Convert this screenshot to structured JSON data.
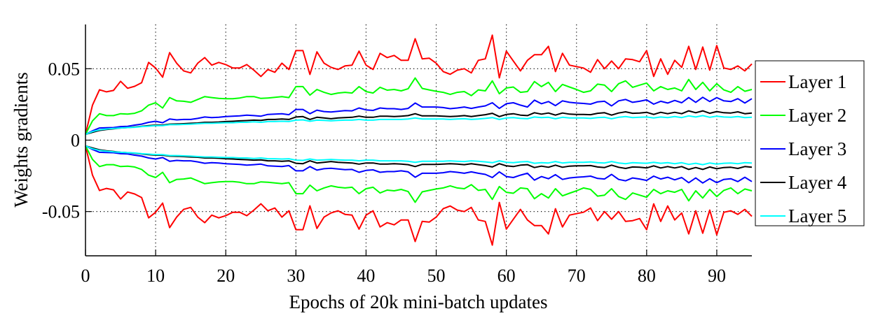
{
  "chart_data": {
    "type": "line",
    "title": "",
    "xlabel": "Epochs of 20k mini-batch updates",
    "ylabel": "Weights gradients",
    "xlim": [
      0,
      95
    ],
    "ylim": [
      -0.081,
      0.081
    ],
    "xticks": [
      0,
      10,
      20,
      30,
      40,
      50,
      60,
      70,
      80,
      90
    ],
    "xtick_labels": [
      "0",
      "10",
      "20",
      "30",
      "40",
      "50",
      "60",
      "70",
      "80",
      "90"
    ],
    "yticks": [
      -0.05,
      0,
      0.05
    ],
    "ytick_labels": [
      "-0.05",
      "0",
      "0.05"
    ],
    "grid": "dotted",
    "legend_position": "right-outside",
    "legend": [
      {
        "name": "Layer 1",
        "color": "#ff0000"
      },
      {
        "name": "Layer 2",
        "color": "#00ff00"
      },
      {
        "name": "Layer 3",
        "color": "#0000ff"
      },
      {
        "name": "Layer 4",
        "color": "#000000"
      },
      {
        "name": "Layer 5",
        "color": "#00ffff"
      }
    ],
    "x_start": 0,
    "x_step": 1,
    "series": [
      {
        "name": "Layer 1",
        "color": "#ff0000",
        "band": "upper",
        "values": [
          0.004,
          0.0245,
          0.0353,
          0.0338,
          0.0348,
          0.0412,
          0.0363,
          0.0377,
          0.0402,
          0.0544,
          0.0505,
          0.0441,
          0.0613,
          0.0539,
          0.0485,
          0.0471,
          0.0539,
          0.0578,
          0.0525,
          0.0544,
          0.0529,
          0.0505,
          0.0505,
          0.0529,
          0.049,
          0.0446,
          0.0495,
          0.0475,
          0.0539,
          0.0495,
          0.0627,
          0.0627,
          0.046,
          0.0618,
          0.0539,
          0.051,
          0.0495,
          0.052,
          0.0525,
          0.0623,
          0.0525,
          0.0495,
          0.0608,
          0.0578,
          0.0593,
          0.0559,
          0.0559,
          0.071,
          0.0569,
          0.0574,
          0.0539,
          0.048,
          0.0461,
          0.049,
          0.05,
          0.0471,
          0.0559,
          0.0569,
          0.0735,
          0.0436,
          0.0623,
          0.0554,
          0.0485,
          0.0559,
          0.0598,
          0.0598,
          0.0657,
          0.048,
          0.0608,
          0.0525,
          0.0515,
          0.0505,
          0.0475,
          0.0564,
          0.05,
          0.0554,
          0.05,
          0.0569,
          0.0564,
          0.0549,
          0.0627,
          0.0446,
          0.0569,
          0.0461,
          0.0559,
          0.051,
          0.0657,
          0.0495,
          0.0652,
          0.049,
          0.0662,
          0.0505,
          0.0495,
          0.052,
          0.0485,
          0.0534
        ]
      },
      {
        "name": "Layer 2",
        "color": "#00ff00",
        "band": "upper",
        "values": [
          0.004,
          0.0135,
          0.0185,
          0.0172,
          0.0172,
          0.0185,
          0.0182,
          0.0188,
          0.0205,
          0.0245,
          0.0262,
          0.0225,
          0.0298,
          0.0275,
          0.0272,
          0.0265,
          0.0285,
          0.0305,
          0.0298,
          0.0292,
          0.029,
          0.029,
          0.0295,
          0.0305,
          0.0305,
          0.0292,
          0.0295,
          0.03,
          0.0305,
          0.0298,
          0.0375,
          0.0375,
          0.0315,
          0.0355,
          0.0335,
          0.032,
          0.033,
          0.0335,
          0.033,
          0.0375,
          0.034,
          0.033,
          0.037,
          0.035,
          0.0355,
          0.0345,
          0.036,
          0.0435,
          0.0362,
          0.0352,
          0.0342,
          0.0335,
          0.032,
          0.0335,
          0.034,
          0.0312,
          0.0352,
          0.0345,
          0.0415,
          0.0325,
          0.0365,
          0.0372,
          0.0335,
          0.034,
          0.041,
          0.0375,
          0.0405,
          0.034,
          0.039,
          0.0372,
          0.0355,
          0.0335,
          0.0345,
          0.0392,
          0.0385,
          0.034,
          0.0395,
          0.0415,
          0.037,
          0.0385,
          0.04,
          0.0345,
          0.0375,
          0.0355,
          0.0365,
          0.0345,
          0.0425,
          0.0355,
          0.0405,
          0.0345,
          0.0395,
          0.0352,
          0.0335,
          0.0375,
          0.0342,
          0.0355
        ]
      },
      {
        "name": "Layer 3",
        "color": "#0000ff",
        "band": "upper",
        "values": [
          0.004,
          0.0065,
          0.0085,
          0.0087,
          0.0088,
          0.0095,
          0.0097,
          0.0105,
          0.0112,
          0.0125,
          0.0132,
          0.0122,
          0.0148,
          0.0142,
          0.0145,
          0.0145,
          0.0152,
          0.0162,
          0.0158,
          0.016,
          0.0165,
          0.0168,
          0.017,
          0.0175,
          0.0172,
          0.0168,
          0.018,
          0.0182,
          0.0185,
          0.0178,
          0.0215,
          0.0215,
          0.0185,
          0.021,
          0.02,
          0.0197,
          0.0202,
          0.0207,
          0.0205,
          0.0225,
          0.0212,
          0.0208,
          0.0225,
          0.022,
          0.022,
          0.0215,
          0.0222,
          0.026,
          0.0232,
          0.0232,
          0.0232,
          0.0228,
          0.022,
          0.0225,
          0.0232,
          0.0222,
          0.0232,
          0.024,
          0.0262,
          0.0222,
          0.0255,
          0.0262,
          0.0245,
          0.0232,
          0.028,
          0.0255,
          0.027,
          0.0242,
          0.0275,
          0.0265,
          0.026,
          0.0257,
          0.0252,
          0.0268,
          0.0272,
          0.024,
          0.0275,
          0.0285,
          0.0265,
          0.0272,
          0.0282,
          0.0252,
          0.0272,
          0.026,
          0.0278,
          0.0262,
          0.0298,
          0.0265,
          0.03,
          0.027,
          0.0298,
          0.0275,
          0.027,
          0.029,
          0.026,
          0.029
        ]
      },
      {
        "name": "Layer 4",
        "color": "#000000",
        "band": "upper",
        "values": [
          0.004,
          0.0055,
          0.0068,
          0.0075,
          0.008,
          0.0085,
          0.0088,
          0.0092,
          0.0097,
          0.0102,
          0.0105,
          0.0105,
          0.0112,
          0.0113,
          0.0115,
          0.0118,
          0.012,
          0.0125,
          0.0125,
          0.0127,
          0.013,
          0.0132,
          0.0135,
          0.0137,
          0.014,
          0.0138,
          0.0145,
          0.0145,
          0.0148,
          0.0145,
          0.0162,
          0.0165,
          0.0145,
          0.016,
          0.0155,
          0.015,
          0.0155,
          0.0158,
          0.016,
          0.0168,
          0.016,
          0.016,
          0.0168,
          0.0168,
          0.0165,
          0.0168,
          0.0172,
          0.0185,
          0.017,
          0.017,
          0.017,
          0.0168,
          0.0165,
          0.0168,
          0.0172,
          0.0165,
          0.0172,
          0.0178,
          0.0188,
          0.0165,
          0.018,
          0.0185,
          0.0175,
          0.0172,
          0.0192,
          0.0182,
          0.019,
          0.0175,
          0.019,
          0.0182,
          0.018,
          0.018,
          0.0178,
          0.0188,
          0.0192,
          0.0175,
          0.019,
          0.0198,
          0.0188,
          0.019,
          0.0195,
          0.018,
          0.0195,
          0.0185,
          0.0195,
          0.0185,
          0.0205,
          0.0192,
          0.0205,
          0.0188,
          0.02,
          0.0192,
          0.019,
          0.0198,
          0.0185,
          0.019
        ]
      },
      {
        "name": "Layer 5",
        "color": "#00ffff",
        "band": "upper",
        "values": [
          0.004,
          0.006,
          0.0072,
          0.0078,
          0.0082,
          0.0085,
          0.0088,
          0.009,
          0.0095,
          0.0098,
          0.0102,
          0.0102,
          0.0108,
          0.0108,
          0.011,
          0.0112,
          0.0115,
          0.0118,
          0.0118,
          0.012,
          0.0122,
          0.0122,
          0.0125,
          0.0125,
          0.0128,
          0.0125,
          0.013,
          0.013,
          0.0132,
          0.013,
          0.014,
          0.0142,
          0.0132,
          0.014,
          0.0138,
          0.0135,
          0.0138,
          0.014,
          0.014,
          0.0145,
          0.014,
          0.014,
          0.0145,
          0.0145,
          0.0145,
          0.0145,
          0.0148,
          0.0155,
          0.0148,
          0.0148,
          0.0148,
          0.0148,
          0.0145,
          0.0148,
          0.015,
          0.0145,
          0.0148,
          0.0152,
          0.0158,
          0.0145,
          0.0155,
          0.0158,
          0.0152,
          0.015,
          0.0162,
          0.0158,
          0.016,
          0.015,
          0.016,
          0.0155,
          0.0155,
          0.0155,
          0.0152,
          0.0158,
          0.016,
          0.015,
          0.016,
          0.0165,
          0.0158,
          0.016,
          0.0162,
          0.0155,
          0.0162,
          0.0158,
          0.0165,
          0.0158,
          0.017,
          0.0162,
          0.0172,
          0.016,
          0.0168,
          0.0162,
          0.016,
          0.0165,
          0.0158,
          0.016
        ]
      },
      {
        "name": "Layer 1",
        "color": "#ff0000",
        "band": "lower",
        "values": [
          -0.004,
          -0.0245,
          -0.0353,
          -0.0338,
          -0.0348,
          -0.0412,
          -0.0363,
          -0.0377,
          -0.0402,
          -0.0544,
          -0.0505,
          -0.0441,
          -0.0613,
          -0.0539,
          -0.0485,
          -0.0471,
          -0.0539,
          -0.0578,
          -0.0525,
          -0.0544,
          -0.0529,
          -0.0505,
          -0.0505,
          -0.0529,
          -0.049,
          -0.0446,
          -0.0495,
          -0.0475,
          -0.0539,
          -0.0495,
          -0.0627,
          -0.0627,
          -0.046,
          -0.0618,
          -0.0539,
          -0.051,
          -0.0495,
          -0.052,
          -0.0525,
          -0.0623,
          -0.0525,
          -0.0495,
          -0.0608,
          -0.0578,
          -0.0593,
          -0.0559,
          -0.0559,
          -0.071,
          -0.0569,
          -0.0574,
          -0.0539,
          -0.048,
          -0.0461,
          -0.049,
          -0.05,
          -0.0471,
          -0.0559,
          -0.0569,
          -0.0735,
          -0.0436,
          -0.0623,
          -0.0554,
          -0.0485,
          -0.0559,
          -0.0598,
          -0.0598,
          -0.0657,
          -0.048,
          -0.0608,
          -0.0525,
          -0.0515,
          -0.0505,
          -0.0475,
          -0.0564,
          -0.05,
          -0.0554,
          -0.05,
          -0.0569,
          -0.0564,
          -0.0549,
          -0.0627,
          -0.0446,
          -0.0569,
          -0.0461,
          -0.0559,
          -0.051,
          -0.0657,
          -0.0495,
          -0.0652,
          -0.049,
          -0.0662,
          -0.0505,
          -0.0495,
          -0.052,
          -0.0485,
          -0.0534
        ]
      },
      {
        "name": "Layer 2",
        "color": "#00ff00",
        "band": "lower",
        "values": [
          -0.004,
          -0.0135,
          -0.0185,
          -0.0172,
          -0.0172,
          -0.0185,
          -0.0182,
          -0.0188,
          -0.0205,
          -0.0245,
          -0.0262,
          -0.0225,
          -0.0298,
          -0.0275,
          -0.0272,
          -0.0265,
          -0.0285,
          -0.0305,
          -0.0298,
          -0.0292,
          -0.029,
          -0.029,
          -0.0295,
          -0.0305,
          -0.0305,
          -0.0292,
          -0.0295,
          -0.03,
          -0.0305,
          -0.0298,
          -0.0375,
          -0.0375,
          -0.0315,
          -0.0355,
          -0.0335,
          -0.032,
          -0.033,
          -0.0335,
          -0.033,
          -0.0375,
          -0.034,
          -0.033,
          -0.037,
          -0.035,
          -0.0355,
          -0.0345,
          -0.036,
          -0.0435,
          -0.0362,
          -0.0352,
          -0.0342,
          -0.0335,
          -0.032,
          -0.0335,
          -0.034,
          -0.0312,
          -0.0352,
          -0.0345,
          -0.0415,
          -0.0325,
          -0.0365,
          -0.0372,
          -0.0335,
          -0.034,
          -0.041,
          -0.0375,
          -0.0405,
          -0.034,
          -0.039,
          -0.0372,
          -0.0355,
          -0.0335,
          -0.0345,
          -0.0392,
          -0.0385,
          -0.034,
          -0.0395,
          -0.0415,
          -0.037,
          -0.0385,
          -0.04,
          -0.0345,
          -0.0375,
          -0.0355,
          -0.0365,
          -0.0345,
          -0.0425,
          -0.0355,
          -0.0405,
          -0.0345,
          -0.0395,
          -0.0352,
          -0.0335,
          -0.0375,
          -0.0342,
          -0.0355
        ]
      },
      {
        "name": "Layer 3",
        "color": "#0000ff",
        "band": "lower",
        "values": [
          -0.004,
          -0.0065,
          -0.0085,
          -0.0087,
          -0.0088,
          -0.0095,
          -0.0097,
          -0.0105,
          -0.0112,
          -0.0125,
          -0.0132,
          -0.0122,
          -0.0148,
          -0.0142,
          -0.0145,
          -0.0145,
          -0.0152,
          -0.0162,
          -0.0158,
          -0.016,
          -0.0165,
          -0.0168,
          -0.017,
          -0.0175,
          -0.0172,
          -0.0168,
          -0.018,
          -0.0182,
          -0.0185,
          -0.0178,
          -0.0215,
          -0.0215,
          -0.0185,
          -0.021,
          -0.02,
          -0.0197,
          -0.0202,
          -0.0207,
          -0.0205,
          -0.0225,
          -0.0212,
          -0.0208,
          -0.0225,
          -0.022,
          -0.022,
          -0.0215,
          -0.0222,
          -0.026,
          -0.0232,
          -0.0232,
          -0.0232,
          -0.0228,
          -0.022,
          -0.0225,
          -0.0232,
          -0.0222,
          -0.0232,
          -0.024,
          -0.0262,
          -0.0222,
          -0.0255,
          -0.0262,
          -0.0245,
          -0.0232,
          -0.028,
          -0.0255,
          -0.027,
          -0.0242,
          -0.0275,
          -0.0265,
          -0.026,
          -0.0257,
          -0.0252,
          -0.0268,
          -0.0272,
          -0.024,
          -0.0275,
          -0.0285,
          -0.0265,
          -0.0272,
          -0.0282,
          -0.0252,
          -0.0272,
          -0.026,
          -0.0278,
          -0.0262,
          -0.0298,
          -0.0265,
          -0.03,
          -0.027,
          -0.0298,
          -0.0275,
          -0.027,
          -0.029,
          -0.026,
          -0.029
        ]
      },
      {
        "name": "Layer 4",
        "color": "#000000",
        "band": "lower",
        "values": [
          -0.004,
          -0.0055,
          -0.0068,
          -0.0075,
          -0.008,
          -0.0085,
          -0.0088,
          -0.0092,
          -0.0097,
          -0.0102,
          -0.0105,
          -0.0105,
          -0.0112,
          -0.0113,
          -0.0115,
          -0.0118,
          -0.012,
          -0.0125,
          -0.0125,
          -0.0127,
          -0.013,
          -0.0132,
          -0.0135,
          -0.0137,
          -0.014,
          -0.0138,
          -0.0145,
          -0.0145,
          -0.0148,
          -0.0145,
          -0.0162,
          -0.0165,
          -0.0145,
          -0.016,
          -0.0155,
          -0.015,
          -0.0155,
          -0.0158,
          -0.016,
          -0.0168,
          -0.016,
          -0.016,
          -0.0168,
          -0.0168,
          -0.0165,
          -0.0168,
          -0.0172,
          -0.0185,
          -0.017,
          -0.017,
          -0.017,
          -0.0168,
          -0.0165,
          -0.0168,
          -0.0172,
          -0.0165,
          -0.0172,
          -0.0178,
          -0.0188,
          -0.0165,
          -0.018,
          -0.0185,
          -0.0175,
          -0.0172,
          -0.0192,
          -0.0182,
          -0.019,
          -0.0175,
          -0.019,
          -0.0182,
          -0.018,
          -0.018,
          -0.0178,
          -0.0188,
          -0.0192,
          -0.0175,
          -0.019,
          -0.0198,
          -0.0188,
          -0.019,
          -0.0195,
          -0.018,
          -0.0195,
          -0.0185,
          -0.0195,
          -0.0185,
          -0.0205,
          -0.0192,
          -0.0205,
          -0.0188,
          -0.02,
          -0.0192,
          -0.019,
          -0.0198,
          -0.0185,
          -0.019
        ]
      },
      {
        "name": "Layer 5",
        "color": "#00ffff",
        "band": "lower",
        "values": [
          -0.004,
          -0.006,
          -0.0072,
          -0.0078,
          -0.0082,
          -0.0085,
          -0.0088,
          -0.009,
          -0.0095,
          -0.0098,
          -0.0102,
          -0.0102,
          -0.0108,
          -0.0108,
          -0.011,
          -0.0112,
          -0.0115,
          -0.0118,
          -0.0118,
          -0.012,
          -0.0122,
          -0.0122,
          -0.0125,
          -0.0125,
          -0.0128,
          -0.0125,
          -0.013,
          -0.013,
          -0.0132,
          -0.013,
          -0.014,
          -0.0142,
          -0.0132,
          -0.014,
          -0.0138,
          -0.0135,
          -0.0138,
          -0.014,
          -0.014,
          -0.0145,
          -0.014,
          -0.014,
          -0.0145,
          -0.0145,
          -0.0145,
          -0.0145,
          -0.0148,
          -0.0155,
          -0.0148,
          -0.0148,
          -0.0148,
          -0.0148,
          -0.0145,
          -0.0148,
          -0.015,
          -0.0145,
          -0.0148,
          -0.0152,
          -0.0158,
          -0.0145,
          -0.0155,
          -0.0158,
          -0.0152,
          -0.015,
          -0.0162,
          -0.0158,
          -0.016,
          -0.015,
          -0.016,
          -0.0155,
          -0.0155,
          -0.0155,
          -0.0152,
          -0.0158,
          -0.016,
          -0.015,
          -0.016,
          -0.0165,
          -0.0158,
          -0.016,
          -0.0162,
          -0.0155,
          -0.0162,
          -0.0158,
          -0.0165,
          -0.0158,
          -0.017,
          -0.0162,
          -0.0172,
          -0.016,
          -0.0168,
          -0.0162,
          -0.016,
          -0.0165,
          -0.0158,
          -0.016
        ]
      }
    ]
  }
}
